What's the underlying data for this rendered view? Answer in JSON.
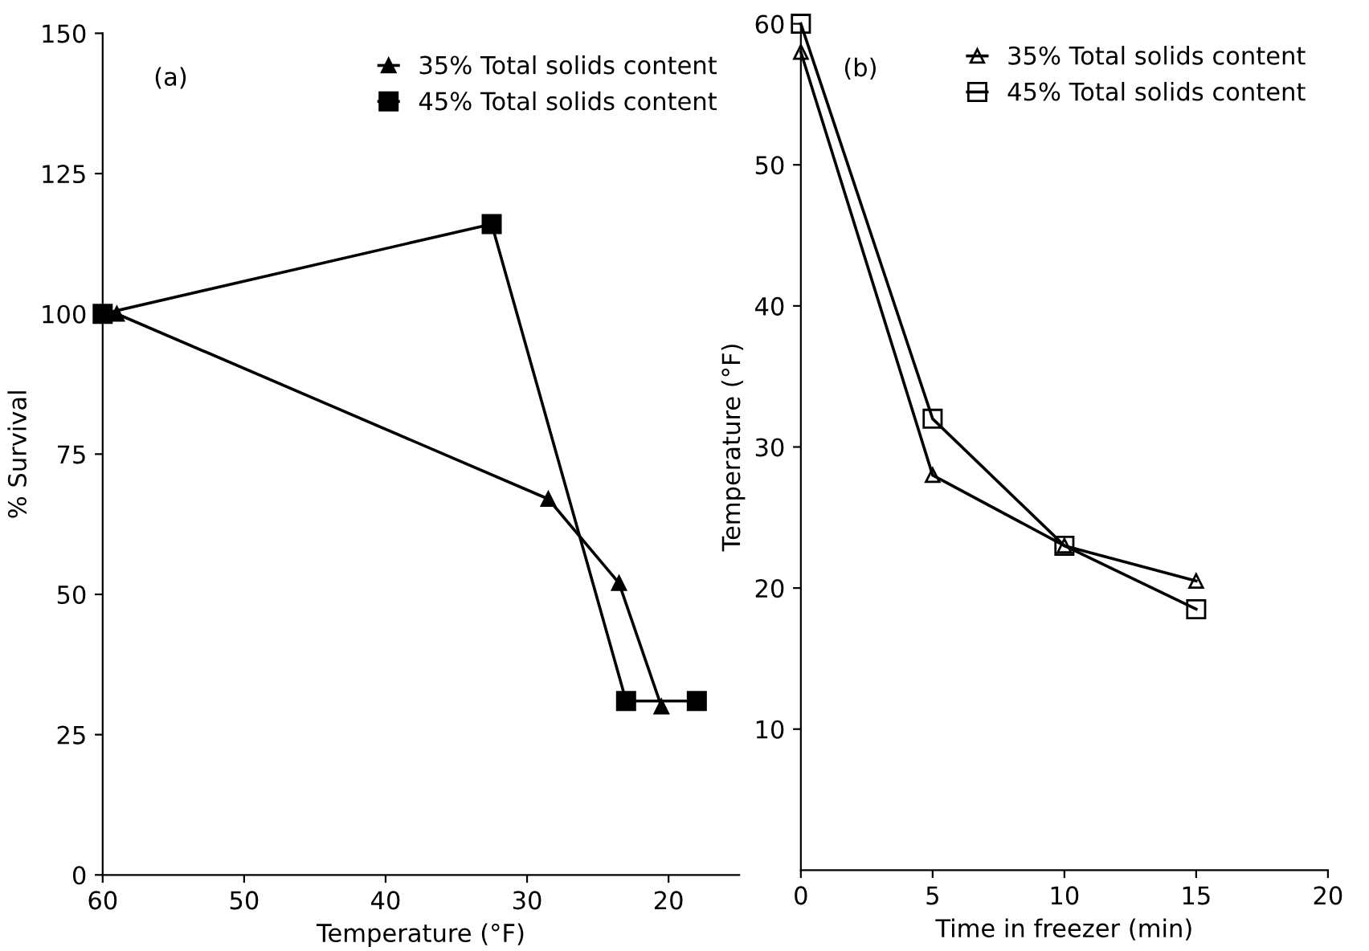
{
  "chart_data": [
    {
      "type": "line",
      "title": "(a)",
      "xlabel": "Temperature (°F)",
      "ylabel": "% Survival",
      "xlim": [
        60,
        15
      ],
      "xticks": [
        60,
        50,
        40,
        30,
        20
      ],
      "ylim": [
        0,
        150
      ],
      "yticks": [
        0,
        25,
        50,
        75,
        100,
        125,
        150
      ],
      "grid": false,
      "legend": "top right",
      "series": [
        {
          "name": "35% Total solids content",
          "color": "#000000",
          "marker": "triangle",
          "x": [
            59,
            28.5,
            23.5,
            20.5
          ],
          "values": [
            100,
            67,
            52,
            30
          ]
        },
        {
          "name": "45% Total solids content",
          "color": "#000000",
          "marker": "square",
          "x": [
            60,
            32.5,
            23,
            18
          ],
          "values": [
            100,
            116,
            31,
            31
          ]
        }
      ]
    },
    {
      "type": "line",
      "title": "(b)",
      "xlabel": "Time in freezer (min)",
      "ylabel": "Temperature (°F)",
      "xlim": [
        0,
        20
      ],
      "xticks": [
        0,
        5,
        10,
        15,
        20
      ],
      "ylim": [
        0,
        60
      ],
      "yticks": [
        10,
        20,
        30,
        40,
        50,
        60
      ],
      "grid": false,
      "legend": "top right",
      "series": [
        {
          "name": "35% Total solids content",
          "color": "#000000",
          "marker": "triangle",
          "x": [
            0,
            5,
            10,
            15
          ],
          "values": [
            58,
            28,
            23,
            20.5
          ]
        },
        {
          "name": "45% Total solids content",
          "color": "#000000",
          "marker": "square",
          "x": [
            0,
            5,
            10,
            15
          ],
          "values": [
            60,
            32,
            23,
            18.5
          ]
        }
      ]
    }
  ]
}
